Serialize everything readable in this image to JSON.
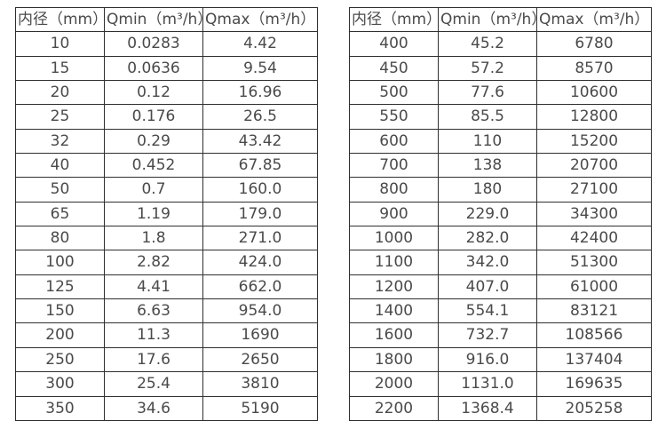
{
  "tables": [
    {
      "name": "flow-table-small-diameters",
      "headers": {
        "diameter": "内径（mm）",
        "qmin": "Qmin（m³/h）",
        "qmax": "Qmax（m³/h）"
      },
      "rows": [
        [
          "10",
          "0.0283",
          "4.42"
        ],
        [
          "15",
          "0.0636",
          "9.54"
        ],
        [
          "20",
          "0.12",
          "16.96"
        ],
        [
          "25",
          "0.176",
          "26.5"
        ],
        [
          "32",
          "0.29",
          "43.42"
        ],
        [
          "40",
          "0.452",
          "67.85"
        ],
        [
          "50",
          "0.7",
          "160.0"
        ],
        [
          "65",
          "1.19",
          "179.0"
        ],
        [
          "80",
          "1.8",
          "271.0"
        ],
        [
          "100",
          "2.82",
          "424.0"
        ],
        [
          "125",
          "4.41",
          "662.0"
        ],
        [
          "150",
          "6.63",
          "954.0"
        ],
        [
          "200",
          "11.3",
          "1690"
        ],
        [
          "250",
          "17.6",
          "2650"
        ],
        [
          "300",
          "25.4",
          "3810"
        ],
        [
          "350",
          "34.6",
          "5190"
        ]
      ]
    },
    {
      "name": "flow-table-large-diameters",
      "headers": {
        "diameter": "内径（mm）",
        "qmin": "Qmin（m³/h）",
        "qmax": "Qmax（m³/h）"
      },
      "rows": [
        [
          "400",
          "45.2",
          "6780"
        ],
        [
          "450",
          "57.2",
          "8570"
        ],
        [
          "500",
          "77.6",
          "10600"
        ],
        [
          "550",
          "85.5",
          "12800"
        ],
        [
          "600",
          "110",
          "15200"
        ],
        [
          "700",
          "138",
          "20700"
        ],
        [
          "800",
          "180",
          "27100"
        ],
        [
          "900",
          "229.0",
          "34300"
        ],
        [
          "1000",
          "282.0",
          "42400"
        ],
        [
          "1100",
          "342.0",
          "51300"
        ],
        [
          "1200",
          "407.0",
          "61000"
        ],
        [
          "1400",
          "554.1",
          "83121"
        ],
        [
          "1600",
          "732.7",
          "108566"
        ],
        [
          "1800",
          "916.0",
          "137404"
        ],
        [
          "2000",
          "1131.0",
          "169635"
        ],
        [
          "2200",
          "1368.4",
          "205258"
        ]
      ]
    }
  ]
}
